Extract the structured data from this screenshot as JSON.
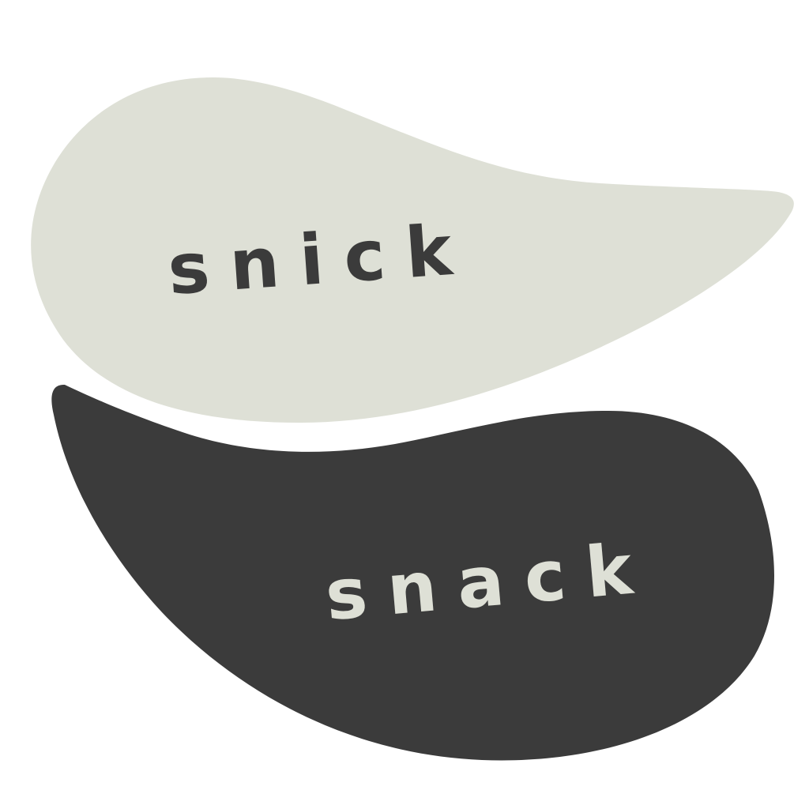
{
  "logo": {
    "top_word": "snick",
    "bottom_word": "snack"
  },
  "colors": {
    "background": "#ffffff",
    "top_blob": "#dee0d6",
    "bottom_blob": "#3b3b3b",
    "top_text": "#3b3b3b",
    "bottom_text": "#dee0d6"
  }
}
